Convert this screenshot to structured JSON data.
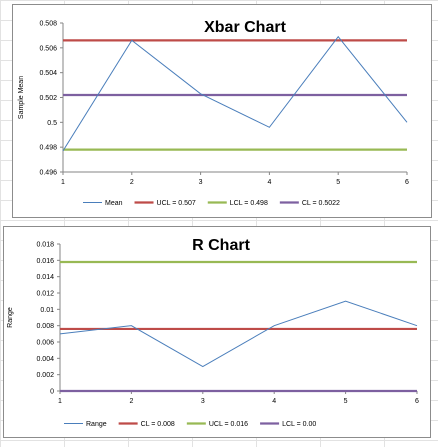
{
  "chart_data": [
    {
      "type": "line",
      "title": "Xbar Chart",
      "xlabel": "",
      "ylabel": "Sample Mean",
      "x": [
        1,
        2,
        3,
        4,
        5,
        6
      ],
      "xlim": [
        1,
        6
      ],
      "ylim": [
        0.496,
        0.508
      ],
      "yticks": [
        0.496,
        0.498,
        0.5,
        0.502,
        0.504,
        0.506,
        0.508
      ],
      "ytick_labels": [
        "0.496",
        "0.498",
        "0.5",
        "0.502",
        "0.504",
        "0.506",
        "0.508"
      ],
      "xtick_labels": [
        "1",
        "2",
        "3",
        "4",
        "5",
        "6"
      ],
      "grid": false,
      "legend_position": "bottom",
      "series": [
        {
          "name": "Mean",
          "color": "#4a7ebb",
          "width": 1,
          "values": [
            0.4977,
            0.5066,
            0.5023,
            0.4996,
            0.5069,
            0.5
          ]
        },
        {
          "name": "UCL = 0.507",
          "color": "#be4b48",
          "width": 2.2,
          "values": [
            0.5066,
            0.5066,
            0.5066,
            0.5066,
            0.5066,
            0.5066
          ]
        },
        {
          "name": "LCL = 0.498",
          "color": "#98b954",
          "width": 2.2,
          "values": [
            0.4978,
            0.4978,
            0.4978,
            0.4978,
            0.4978,
            0.4978
          ]
        },
        {
          "name": "CL = 0.5022",
          "color": "#7d60a0",
          "width": 2.2,
          "values": [
            0.5022,
            0.5022,
            0.5022,
            0.5022,
            0.5022,
            0.5022
          ]
        }
      ]
    },
    {
      "type": "line",
      "title": "R Chart",
      "xlabel": "",
      "ylabel": "Range",
      "x": [
        1,
        2,
        3,
        4,
        5,
        6
      ],
      "xlim": [
        1,
        6
      ],
      "ylim": [
        0,
        0.018
      ],
      "yticks": [
        0,
        0.002,
        0.004,
        0.006,
        0.008,
        0.01,
        0.012,
        0.014,
        0.016,
        0.018
      ],
      "ytick_labels": [
        "0",
        "0.002",
        "0.004",
        "0.006",
        "0.008",
        "0.01",
        "0.012",
        "0.014",
        "0.016",
        "0.018"
      ],
      "xtick_labels": [
        "1",
        "2",
        "3",
        "4",
        "5",
        "6"
      ],
      "grid": false,
      "legend_position": "bottom",
      "series": [
        {
          "name": "Range",
          "color": "#4a7ebb",
          "width": 1,
          "values": [
            0.007,
            0.008,
            0.003,
            0.008,
            0.011,
            0.008
          ]
        },
        {
          "name": "CL = 0.008",
          "color": "#be4b48",
          "width": 2.2,
          "values": [
            0.0076,
            0.0076,
            0.0076,
            0.0076,
            0.0076,
            0.0076
          ]
        },
        {
          "name": "UCL = 0.016",
          "color": "#98b954",
          "width": 2.2,
          "values": [
            0.0158,
            0.0158,
            0.0158,
            0.0158,
            0.0158,
            0.0158
          ]
        },
        {
          "name": "LCL = 0.00",
          "color": "#7d60a0",
          "width": 2.2,
          "values": [
            0,
            0,
            0,
            0,
            0,
            0
          ]
        }
      ]
    }
  ]
}
